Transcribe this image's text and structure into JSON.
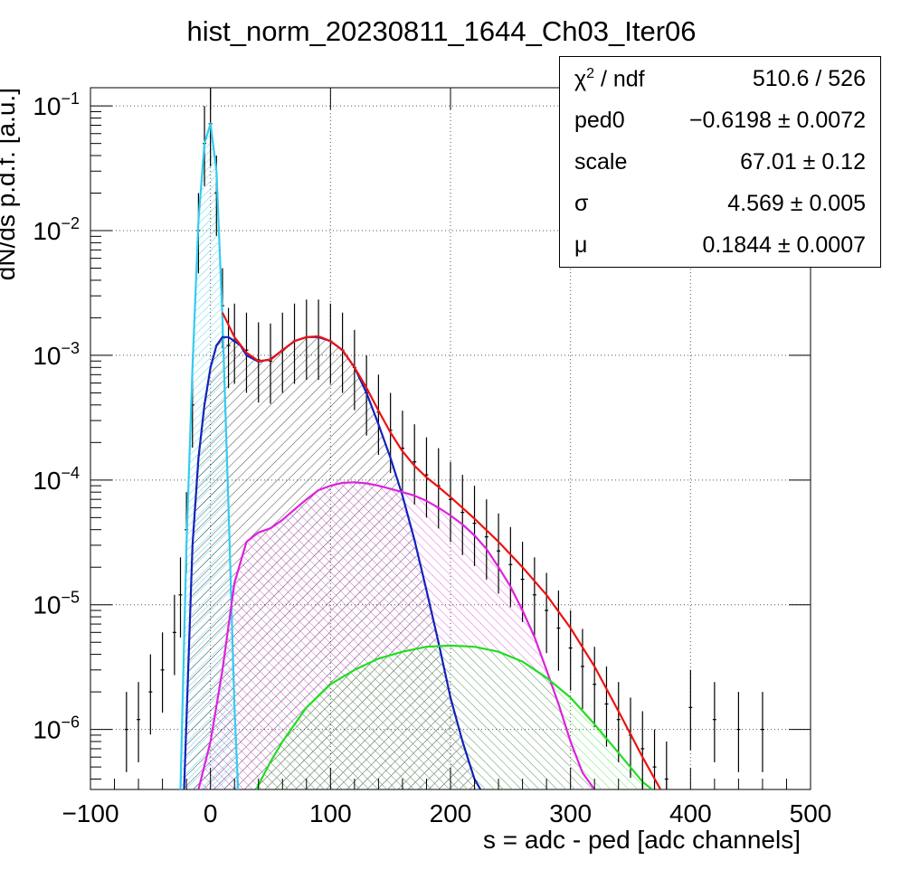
{
  "chart_data": {
    "type": "line",
    "title": "hist_norm_20230811_1644_Ch03_Iter06",
    "xlabel": "s = adc - ped [adc channels]",
    "ylabel": "dN/ds p.d.f. [a.u.]",
    "xlim": [
      -100,
      500
    ],
    "ylim": [
      3.3e-07,
      0.14
    ],
    "y_scale": "log",
    "grid": true,
    "x_ticks": [
      -100,
      0,
      100,
      200,
      300,
      400,
      500
    ],
    "x_tick_labels": [
      "−100",
      "0",
      "100",
      "200",
      "300",
      "400",
      "500"
    ],
    "y_ticks": [
      1e-06,
      1e-05,
      0.0001,
      0.001,
      0.01,
      0.1
    ],
    "y_tick_labels": [
      {
        "base": "10",
        "exp": "−6"
      },
      {
        "base": "10",
        "exp": "−5"
      },
      {
        "base": "10",
        "exp": "−4"
      },
      {
        "base": "10",
        "exp": "−3"
      },
      {
        "base": "10",
        "exp": "−2"
      },
      {
        "base": "10",
        "exp": "−1"
      }
    ],
    "histogram": {
      "color": "#000000",
      "x": [
        -70,
        -60,
        -50,
        -40,
        -30,
        -25,
        -20,
        -15,
        -10,
        -5,
        0,
        5,
        10,
        15,
        20,
        30,
        40,
        50,
        60,
        70,
        80,
        90,
        100,
        110,
        120,
        130,
        140,
        150,
        160,
        170,
        180,
        190,
        200,
        210,
        220,
        230,
        240,
        250,
        260,
        270,
        280,
        290,
        300,
        310,
        320,
        330,
        340,
        350,
        360,
        370,
        380,
        400,
        420,
        440,
        460
      ],
      "y": [
        1e-06,
        1.2e-06,
        2e-06,
        3e-06,
        6e-06,
        1.2e-05,
        4e-05,
        0.0004,
        0.01,
        0.05,
        0.072,
        0.02,
        0.0025,
        0.0012,
        0.0013,
        0.0011,
        0.00092,
        0.0009,
        0.0011,
        0.0013,
        0.0014,
        0.0014,
        0.0013,
        0.0011,
        0.0008,
        0.0005,
        0.00035,
        0.00025,
        0.00018,
        0.00014,
        0.00011,
        9e-05,
        7e-05,
        5.5e-05,
        4.5e-05,
        3.5e-05,
        2.7e-05,
        2.1e-05,
        1.6e-05,
        1.2e-05,
        9e-06,
        6.5e-06,
        4.5e-06,
        3.2e-06,
        2.3e-06,
        1.6e-06,
        1.2e-06,
        9e-07,
        7e-07,
        5e-07,
        4e-07,
        1.5e-06,
        1.2e-06,
        1e-06,
        1e-06
      ]
    },
    "series": [
      {
        "color": "#33ccee",
        "fill_hatch": true,
        "x": [
          -25,
          -20,
          -15,
          -10,
          -5,
          0,
          5,
          10,
          15,
          20,
          23
        ],
        "y": [
          3.3e-07,
          3e-05,
          0.0008,
          0.012,
          0.05,
          0.072,
          0.03,
          0.002,
          6e-05,
          1.5e-06,
          3.3e-07
        ]
      },
      {
        "color": "#1122bb",
        "fill_hatch": true,
        "x": [
          -22,
          -15,
          -10,
          -5,
          0,
          5,
          10,
          15,
          20,
          25,
          30,
          40,
          50,
          60,
          70,
          80,
          90,
          100,
          110,
          120,
          130,
          140,
          150,
          160,
          170,
          180,
          190,
          200,
          210,
          220,
          225
        ],
        "y": [
          3.3e-07,
          3e-05,
          0.00015,
          0.0004,
          0.0008,
          0.0012,
          0.0014,
          0.0014,
          0.0013,
          0.0012,
          0.001,
          0.00089,
          0.00093,
          0.0011,
          0.0013,
          0.0014,
          0.0014,
          0.0013,
          0.0011,
          0.0008,
          0.0005,
          0.00028,
          0.00015,
          7.5e-05,
          3.3e-05,
          1.3e-05,
          5e-06,
          1.8e-06,
          8e-07,
          4e-07,
          3.3e-07
        ]
      },
      {
        "color": "#dd22dd",
        "fill_hatch": true,
        "x": [
          -10,
          0,
          10,
          20,
          30,
          40,
          50,
          60,
          70,
          80,
          90,
          100,
          110,
          120,
          130,
          140,
          150,
          160,
          170,
          180,
          190,
          200,
          210,
          220,
          230,
          240,
          250,
          260,
          270,
          280,
          290,
          300,
          310,
          320
        ],
        "y": [
          3.3e-07,
          8e-07,
          3e-06,
          1.5e-05,
          3.2e-05,
          3.8e-05,
          4.1e-05,
          4.8e-05,
          5.8e-05,
          7e-05,
          8.3e-05,
          9e-05,
          9.5e-05,
          9.6e-05,
          9.4e-05,
          9e-05,
          8.5e-05,
          8e-05,
          7.5e-05,
          6.8e-05,
          6e-05,
          5.2e-05,
          4.4e-05,
          3.6e-05,
          2.8e-05,
          2e-05,
          1.4e-05,
          9e-06,
          5.5e-06,
          3e-06,
          1.6e-06,
          8e-07,
          4.5e-07,
          3.3e-07
        ]
      },
      {
        "color": "#22dd22",
        "fill_hatch": true,
        "x": [
          38,
          50,
          60,
          80,
          100,
          120,
          140,
          160,
          180,
          200,
          220,
          240,
          260,
          280,
          300,
          320,
          340,
          360,
          368
        ],
        "y": [
          3.3e-07,
          5.5e-07,
          8e-07,
          1.5e-06,
          2.3e-06,
          3e-06,
          3.7e-06,
          4.2e-06,
          4.6e-06,
          4.7e-06,
          4.6e-06,
          4.2e-06,
          3.5e-06,
          2.6e-06,
          1.8e-06,
          1.1e-06,
          6.5e-07,
          3.8e-07,
          3.3e-07
        ]
      },
      {
        "color": "#ee1111",
        "fill_hatch": false,
        "x": [
          10,
          20,
          30,
          40,
          50,
          60,
          70,
          80,
          90,
          100,
          110,
          120,
          130,
          140,
          150,
          160,
          170,
          180,
          190,
          200,
          220,
          240,
          260,
          280,
          300,
          320,
          340,
          360,
          375
        ],
        "y": [
          0.0022,
          0.0014,
          0.00105,
          0.0009,
          0.00092,
          0.0011,
          0.0013,
          0.0014,
          0.00142,
          0.0013,
          0.0011,
          0.0008,
          0.00055,
          0.00036,
          0.00024,
          0.00017,
          0.00013,
          0.000105,
          8.8e-05,
          7.3e-05,
          4.9e-05,
          3.2e-05,
          2e-05,
          1.2e-05,
          6.5e-06,
          3.2e-06,
          1.4e-06,
          6e-07,
          3.3e-07
        ]
      }
    ],
    "stats": [
      {
        "name_base": "χ",
        "name_sup": "2",
        "name_rest": " / ndf",
        "value": "510.6 / 526"
      },
      {
        "name_base": "ped0",
        "name_sup": "",
        "name_rest": "",
        "value": "−0.6198 ± 0.0072"
      },
      {
        "name_base": "scale",
        "name_sup": "",
        "name_rest": "",
        "value": "67.01 ± 0.12"
      },
      {
        "name_base": "σ",
        "name_sup": "",
        "name_rest": "",
        "value": "4.569 ± 0.005"
      },
      {
        "name_base": "μ",
        "name_sup": "",
        "name_rest": "",
        "value": "0.1844 ± 0.0007"
      }
    ]
  }
}
